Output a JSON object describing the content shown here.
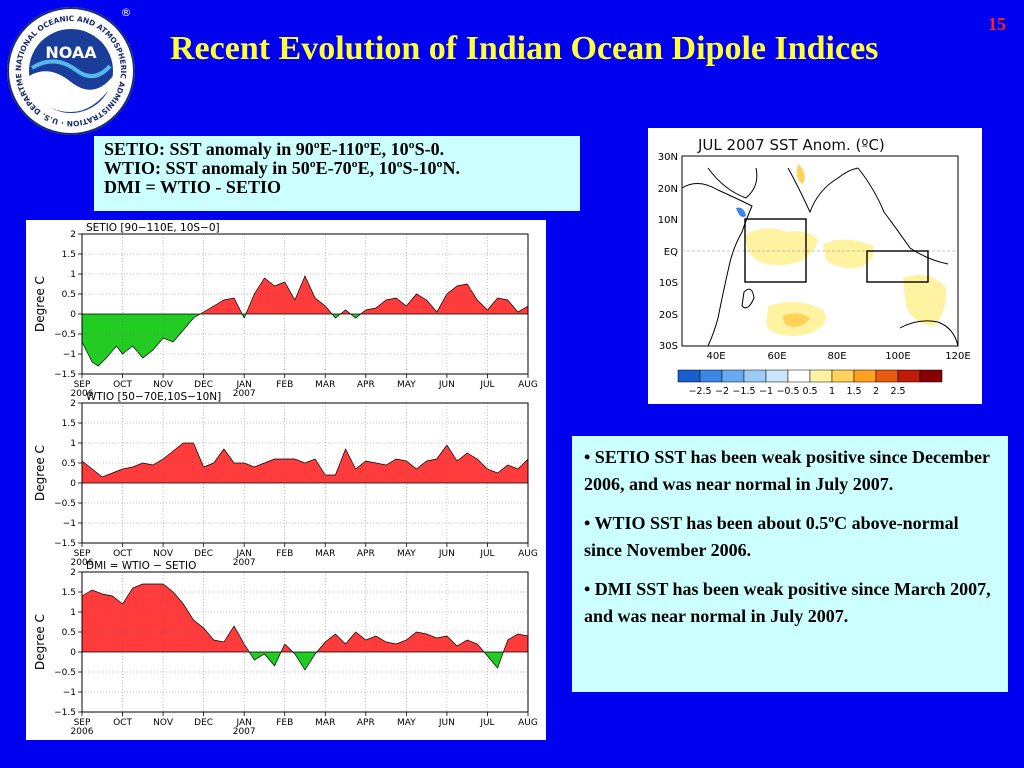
{
  "logo": {
    "center_text": "NOAA",
    "ring_text": "NATIONAL OCEANIC AND ATMOSPHERIC ADMINISTRATION · U.S. DEPARTMENT OF COMMERCE",
    "registered_mark": "®"
  },
  "page_number": "15",
  "title": "Recent Evolution of Indian Ocean Dipole Indices",
  "definitions": [
    "SETIO: SST anomaly in 90ºE-110ºE, 10ºS-0.",
    "WTIO:  SST anomaly in 50ºE-70ºE, 10ºS-10ºN.",
    "DMI = WTIO - SETIO"
  ],
  "bullets": [
    "• SETIO SST has been weak positive since December 2006, and was near normal in July 2007.",
    "• WTIO SST has been about 0.5ºC above-normal since November 2006.",
    "• DMI SST has been weak positive since March 2007, and was near normal in July 2007."
  ],
  "colors": {
    "background": "#0000f0",
    "title": "#ffff33",
    "page_number": "#ff2020",
    "text_box": "#ccffff",
    "positive_fill": "#ff3b3b",
    "negative_fill": "#22cc22"
  },
  "chart_data": [
    {
      "type": "area",
      "title": "SETIO [90−110E, 10S−0]",
      "ylabel": "Degree C",
      "ylim": [
        -1.5,
        2
      ],
      "yticks": [
        -1.5,
        -1,
        -0.5,
        0,
        0.5,
        1,
        1.5,
        2
      ],
      "ytick_labels": [
        "−1.5",
        "−1",
        "−0.5",
        "0",
        "0.5",
        "1",
        "1.5",
        "2"
      ],
      "xlim": [
        0,
        11
      ],
      "xticks": [
        0,
        1,
        2,
        3,
        4,
        5,
        6,
        7,
        8,
        9,
        10,
        11
      ],
      "xtick_labels": [
        "SEP",
        "OCT",
        "NOV",
        "DEC",
        "JAN",
        "FEB",
        "MAR",
        "APR",
        "MAY",
        "JUN",
        "JUL",
        "AUG"
      ],
      "xtick_sublabels": {
        "0": "2006",
        "4": "2007"
      },
      "x": [
        0,
        0.25,
        0.4,
        0.6,
        0.85,
        1.0,
        1.25,
        1.5,
        1.75,
        2.0,
        2.25,
        2.5,
        2.75,
        3.0,
        3.25,
        3.5,
        3.75,
        4.0,
        4.25,
        4.5,
        4.75,
        5.0,
        5.25,
        5.5,
        5.75,
        6.0,
        6.25,
        6.5,
        6.75,
        7.0,
        7.25,
        7.5,
        7.75,
        8.0,
        8.25,
        8.5,
        8.75,
        9.0,
        9.25,
        9.5,
        9.75,
        10.0,
        10.25,
        10.5,
        10.75,
        11.0
      ],
      "values": [
        -0.7,
        -1.2,
        -1.3,
        -1.1,
        -0.8,
        -1.0,
        -0.8,
        -1.1,
        -0.9,
        -0.6,
        -0.7,
        -0.4,
        -0.1,
        0.05,
        0.2,
        0.35,
        0.4,
        -0.1,
        0.5,
        0.9,
        0.7,
        0.8,
        0.35,
        0.95,
        0.4,
        0.2,
        -0.1,
        0.1,
        -0.1,
        0.1,
        0.15,
        0.35,
        0.4,
        0.2,
        0.5,
        0.35,
        0.05,
        0.5,
        0.7,
        0.75,
        0.35,
        0.1,
        0.4,
        0.35,
        0.05,
        0.2
      ]
    },
    {
      "type": "area",
      "title": "WTIO [50−70E,10S−10N]",
      "ylabel": "Degree C",
      "ylim": [
        -1.5,
        2
      ],
      "yticks": [
        -1.5,
        -1,
        -0.5,
        0,
        0.5,
        1,
        1.5,
        2
      ],
      "ytick_labels": [
        "−1.5",
        "−1",
        "−0.5",
        "0",
        "0.5",
        "1",
        "1.5",
        "2"
      ],
      "xlim": [
        0,
        11
      ],
      "xticks": [
        0,
        1,
        2,
        3,
        4,
        5,
        6,
        7,
        8,
        9,
        10,
        11
      ],
      "xtick_labels": [
        "SEP",
        "OCT",
        "NOV",
        "DEC",
        "JAN",
        "FEB",
        "MAR",
        "APR",
        "MAY",
        "JUN",
        "JUL",
        "AUG"
      ],
      "xtick_sublabels": {
        "0": "2006",
        "4": "2007"
      },
      "x": [
        0,
        0.25,
        0.5,
        0.75,
        1.0,
        1.25,
        1.5,
        1.75,
        2.0,
        2.25,
        2.5,
        2.75,
        3.0,
        3.25,
        3.5,
        3.75,
        4.0,
        4.25,
        4.5,
        4.75,
        5.0,
        5.25,
        5.5,
        5.75,
        6.0,
        6.25,
        6.5,
        6.75,
        7.0,
        7.25,
        7.5,
        7.75,
        8.0,
        8.25,
        8.5,
        8.75,
        9.0,
        9.25,
        9.5,
        9.75,
        10.0,
        10.25,
        10.5,
        10.75,
        11.0
      ],
      "values": [
        0.55,
        0.35,
        0.15,
        0.25,
        0.35,
        0.4,
        0.5,
        0.45,
        0.6,
        0.8,
        1.0,
        1.0,
        0.4,
        0.5,
        0.85,
        0.5,
        0.5,
        0.4,
        0.5,
        0.6,
        0.6,
        0.6,
        0.5,
        0.6,
        0.2,
        0.2,
        0.85,
        0.35,
        0.55,
        0.5,
        0.45,
        0.6,
        0.55,
        0.35,
        0.55,
        0.6,
        0.95,
        0.55,
        0.75,
        0.6,
        0.35,
        0.25,
        0.45,
        0.35,
        0.6
      ]
    },
    {
      "type": "area",
      "title": "DMI = WTIO − SETIO",
      "ylabel": "Degree C",
      "ylim": [
        -1.5,
        2
      ],
      "yticks": [
        -1.5,
        -1,
        -0.5,
        0,
        0.5,
        1,
        1.5,
        2
      ],
      "ytick_labels": [
        "−1.5",
        "−1",
        "−0.5",
        "0",
        "0.5",
        "1",
        "1.5",
        "2"
      ],
      "xlim": [
        0,
        11
      ],
      "xticks": [
        0,
        1,
        2,
        3,
        4,
        5,
        6,
        7,
        8,
        9,
        10,
        11
      ],
      "xtick_labels": [
        "SEP",
        "OCT",
        "NOV",
        "DEC",
        "JAN",
        "FEB",
        "MAR",
        "APR",
        "MAY",
        "JUN",
        "JUL",
        "AUG"
      ],
      "xtick_sublabels": {
        "0": "2006",
        "4": "2007"
      },
      "x": [
        0,
        0.25,
        0.5,
        0.75,
        1.0,
        1.25,
        1.5,
        1.75,
        2.0,
        2.25,
        2.5,
        2.75,
        3.0,
        3.25,
        3.5,
        3.75,
        4.0,
        4.25,
        4.5,
        4.75,
        5.0,
        5.25,
        5.5,
        5.75,
        6.0,
        6.25,
        6.5,
        6.75,
        7.0,
        7.25,
        7.5,
        7.75,
        8.0,
        8.25,
        8.5,
        8.75,
        9.0,
        9.25,
        9.5,
        9.75,
        10.0,
        10.25,
        10.5,
        10.75,
        11.0
      ],
      "values": [
        1.4,
        1.55,
        1.45,
        1.4,
        1.2,
        1.6,
        1.7,
        1.7,
        1.7,
        1.5,
        1.2,
        0.8,
        0.6,
        0.3,
        0.25,
        0.65,
        0.2,
        -0.2,
        -0.05,
        -0.35,
        0.2,
        -0.05,
        -0.45,
        -0.05,
        0.25,
        0.45,
        0.2,
        0.5,
        0.3,
        0.4,
        0.25,
        0.2,
        0.3,
        0.5,
        0.45,
        0.35,
        0.4,
        0.15,
        0.3,
        0.2,
        -0.1,
        -0.4,
        0.3,
        0.45,
        0.4
      ]
    },
    {
      "type": "heatmap",
      "title": "JUL 2007 SST Anom. (ºC)",
      "x_tick_labels": [
        "40E",
        "60E",
        "80E",
        "100E",
        "120E"
      ],
      "y_tick_labels": [
        "30N",
        "20N",
        "10N",
        "EQ",
        "10S",
        "20S",
        "30S"
      ],
      "colorbar_labels": [
        "−2.5",
        "−2",
        "−1.5",
        "−1",
        "−0.5",
        "0.5",
        "1",
        "1.5",
        "2",
        "2.5"
      ],
      "colorbar_colors": [
        "#1a5fd0",
        "#3c87e6",
        "#6aaaf2",
        "#9ccbf8",
        "#c9e6fb",
        "#ffffff",
        "#fff2a0",
        "#ffd35a",
        "#ffa020",
        "#e85a10",
        "#c01a08",
        "#880000"
      ]
    }
  ]
}
